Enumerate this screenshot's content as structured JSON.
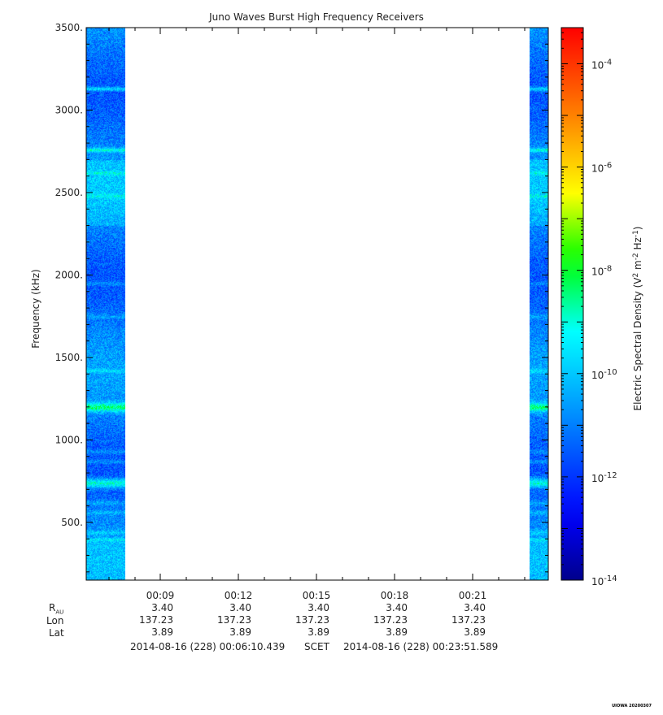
{
  "chart_data": {
    "type": "heatmap",
    "title": "Juno Waves Burst High Frequency Receivers",
    "ylabel": "Frequency (kHz)",
    "colorbar_label_main": "Electric Spectral Density (V",
    "colorbar_label_exp1": "2",
    "colorbar_label_mid": " m",
    "colorbar_label_exp2": "-2",
    "colorbar_label_mid2": " Hz",
    "colorbar_label_exp3": "-1",
    "colorbar_label_end": ")",
    "ylim": [
      150,
      3500
    ],
    "y_ticks": [
      {
        "value": 500,
        "label": "500."
      },
      {
        "value": 1000,
        "label": "1000."
      },
      {
        "value": 1500,
        "label": "1500."
      },
      {
        "value": 2000,
        "label": "2000."
      },
      {
        "value": 2500,
        "label": "2500."
      },
      {
        "value": 3000,
        "label": "3000."
      },
      {
        "value": 3500,
        "label": "3500."
      }
    ],
    "x_ticks": [
      "00:09",
      "00:12",
      "00:15",
      "00:18",
      "00:21"
    ],
    "colorbar_ticks": [
      {
        "exp": -4,
        "label": "10",
        "sup": "-4"
      },
      {
        "exp": -6,
        "label": "10",
        "sup": "-6"
      },
      {
        "exp": -8,
        "label": "10",
        "sup": "-8"
      },
      {
        "exp": -10,
        "label": "10",
        "sup": "-10"
      },
      {
        "exp": -12,
        "label": "10",
        "sup": "-12"
      },
      {
        "exp": -14,
        "label": "10",
        "sup": "-14"
      }
    ],
    "colorbar_range_exp": [
      -14,
      -3.3
    ],
    "data_blocks": [
      {
        "name": "block-start",
        "t_start": "00:06:10",
        "t_end": "00:07:00"
      },
      {
        "name": "block-end",
        "t_start": "00:23:30",
        "t_end": "00:23:51"
      }
    ],
    "emission_bands_khz": [
      3130,
      2760,
      2620,
      2480,
      1200,
      1950,
      1750,
      1420,
      930,
      870,
      740,
      620,
      560,
      440,
      400
    ],
    "colors": [
      "#00008f",
      "#0000ff",
      "#00bfff",
      "#00ffff",
      "#00ff00",
      "#ffff00",
      "#ff8000",
      "#ff0000"
    ]
  },
  "ephemeris": {
    "labels": [
      {
        "main": "R",
        "sub": "AU"
      },
      {
        "main": "Lon",
        "sub": ""
      },
      {
        "main": "Lat",
        "sub": ""
      }
    ],
    "columns": [
      {
        "r": "3.40",
        "lon": "137.23",
        "lat": "3.89"
      },
      {
        "r": "3.40",
        "lon": "137.23",
        "lat": "3.89"
      },
      {
        "r": "3.40",
        "lon": "137.23",
        "lat": "3.89"
      },
      {
        "r": "3.40",
        "lon": "137.23",
        "lat": "3.89"
      },
      {
        "r": "3.40",
        "lon": "137.23",
        "lat": "3.89"
      }
    ]
  },
  "time_range": {
    "start": "2014-08-16 (228) 00:06:10.439",
    "frame": "SCET",
    "end": "2014-08-16 (228) 00:23:51.589"
  },
  "stamp": "UIOWA 20200307"
}
